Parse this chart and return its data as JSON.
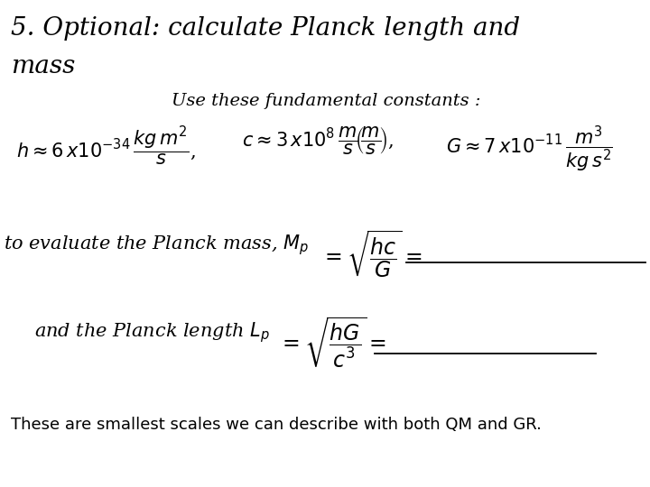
{
  "bg_color": "#ffffff",
  "title_line1": "5. Optional: calculate Planck length and",
  "title_line2": "mass",
  "subtitle": "Use these fundamental constants :",
  "footer": "These are smallest scales we can describe with both QM and GR.",
  "title_fontsize": 20,
  "subtitle_fontsize": 14,
  "body_fontsize": 15,
  "formula_fontsize": 15,
  "footer_fontsize": 13
}
